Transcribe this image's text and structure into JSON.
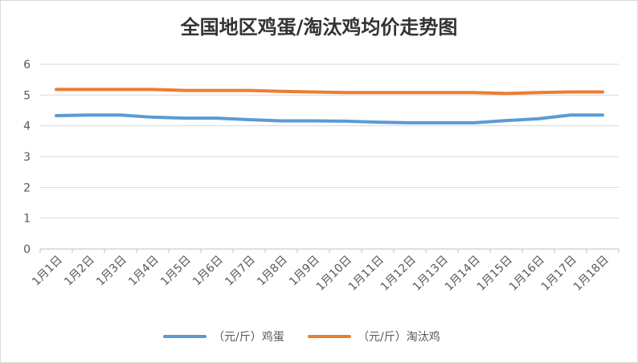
{
  "chart_data": {
    "type": "line",
    "title": "全国地区鸡蛋/淘汰鸡均价走势图",
    "categories": [
      "1月1日",
      "1月2日",
      "1月3日",
      "1月4日",
      "1月5日",
      "1月6日",
      "1月7日",
      "1月8日",
      "1月9日",
      "1月10日",
      "1月11日",
      "1月12日",
      "1月13日",
      "1月14日",
      "1月15日",
      "1月16日",
      "1月17日",
      "1月18日"
    ],
    "series": [
      {
        "name": "（元/斤）鸡蛋",
        "color": "#5b9bd5",
        "values": [
          4.33,
          4.35,
          4.35,
          4.28,
          4.25,
          4.25,
          4.2,
          4.16,
          4.16,
          4.15,
          4.12,
          4.1,
          4.1,
          4.1,
          4.17,
          4.23,
          4.35,
          4.35
        ]
      },
      {
        "name": "（元/斤）淘汰鸡",
        "color": "#ed7d31",
        "values": [
          5.18,
          5.18,
          5.18,
          5.18,
          5.15,
          5.15,
          5.15,
          5.12,
          5.1,
          5.08,
          5.08,
          5.08,
          5.08,
          5.08,
          5.05,
          5.08,
          5.1,
          5.1
        ]
      }
    ],
    "ylim": [
      0,
      6
    ],
    "yticks": [
      "0",
      "1",
      "2",
      "3",
      "4",
      "5",
      "6"
    ],
    "grid": true,
    "legend": "bottom"
  }
}
